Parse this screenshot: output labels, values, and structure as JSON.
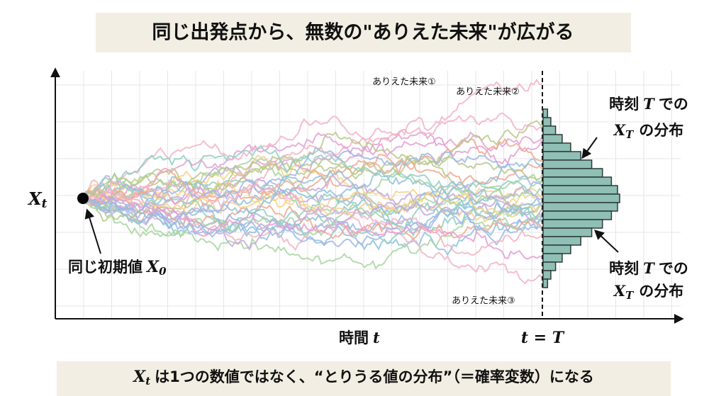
{
  "title": "同じ出発点から、無数の\"ありえた未来\"が広がる",
  "y_label": {
    "var": "X",
    "sub": "t"
  },
  "x_label": {
    "text": "時間",
    "var": "t"
  },
  "end_label": "t = T",
  "start_note": {
    "text": "同じ初期値",
    "var": "X",
    "sub": "0"
  },
  "path_labels": [
    "ありえた未来①",
    "ありえた未来②",
    "ありえた未来③"
  ],
  "dist_notes": [
    {
      "line1": {
        "pre": "時刻",
        "var": "T",
        "post": "での"
      },
      "line2": {
        "var": "X",
        "sub": "T",
        "post": "の分布"
      }
    },
    {
      "line1": {
        "pre": "時刻",
        "var": "T",
        "post": "での"
      },
      "line2": {
        "var": "X",
        "sub": "T",
        "post": "の分布"
      }
    }
  ],
  "footer": {
    "var": "X",
    "sub": "t",
    "text": "は1つの数値ではなく、“とりうる値の分布”（＝確率変数）になる"
  }
}
